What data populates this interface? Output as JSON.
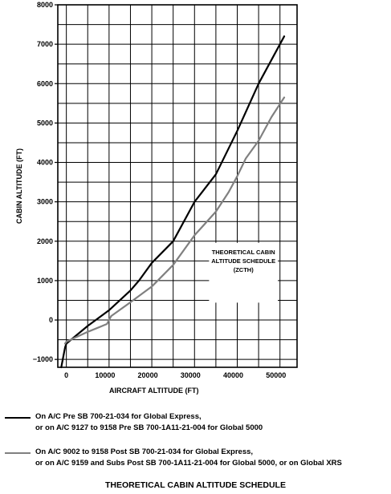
{
  "chart_data": {
    "type": "line",
    "title": "THEORETICAL CABIN ALTITUDE SCHEDULE",
    "xlabel": "AIRCRAFT ALTITUDE (FT)",
    "ylabel": "CABIN ALTITUDE (FT)",
    "xlim": [
      -2000,
      54000
    ],
    "ylim": [
      -1200,
      8000
    ],
    "x_ticks": [
      0,
      10000,
      20000,
      30000,
      40000,
      50000
    ],
    "y_ticks": [
      -1000,
      0,
      1000,
      2000,
      3000,
      4000,
      5000,
      6000,
      7000,
      8000
    ],
    "x_tick_labels": [
      "0",
      "10000",
      "20000",
      "30000",
      "40000",
      "50000"
    ],
    "y_tick_labels": [
      "−1000",
      "0",
      "1000",
      "2000",
      "3000",
      "4000",
      "5000",
      "6000",
      "7000",
      "8000"
    ],
    "grid": true,
    "annotation": [
      "THEORETICAL CABIN",
      "ALTITUDE SCHEDULE",
      "(ZCTH)"
    ],
    "series": [
      {
        "color": "#000000",
        "x": [
          -1200,
          -300,
          0,
          5000,
          10000,
          15000,
          17000,
          20000,
          25000,
          30000,
          35000,
          40000,
          45000,
          51000
        ],
        "y": [
          -1200,
          -700,
          -600,
          -150,
          250,
          750,
          1000,
          1450,
          2000,
          3000,
          3700,
          4800,
          6000,
          7200
        ]
      },
      {
        "color": "#808080",
        "x": [
          -300,
          0,
          5000,
          9500,
          10000,
          10500,
          15000,
          20000,
          25000,
          30000,
          35000,
          38000,
          40000,
          42000,
          45000,
          48000,
          51000
        ],
        "y": [
          -600,
          -550,
          -300,
          -100,
          0,
          100,
          450,
          850,
          1400,
          2150,
          2750,
          3250,
          3650,
          4100,
          4550,
          5150,
          5650
        ]
      }
    ]
  },
  "legend": [
    {
      "color": "#000000",
      "line1": "On A/C Pre SB 700-21-034 for Global Express,",
      "line2": "or on A/C 9127 to 9158 Pre SB 700-1A11-21-004 for Global 5000"
    },
    {
      "color": "#808080",
      "line1": "On A/C 9002 to 9158 Post SB 700-21-034 for Global Express,",
      "line2": "or on A/C 9159 and Subs Post SB 700-1A11-21-004 for Global 5000, or on Global XRS"
    }
  ],
  "footer_title": "THEORETICAL CABIN ALTITUDE SCHEDULE"
}
